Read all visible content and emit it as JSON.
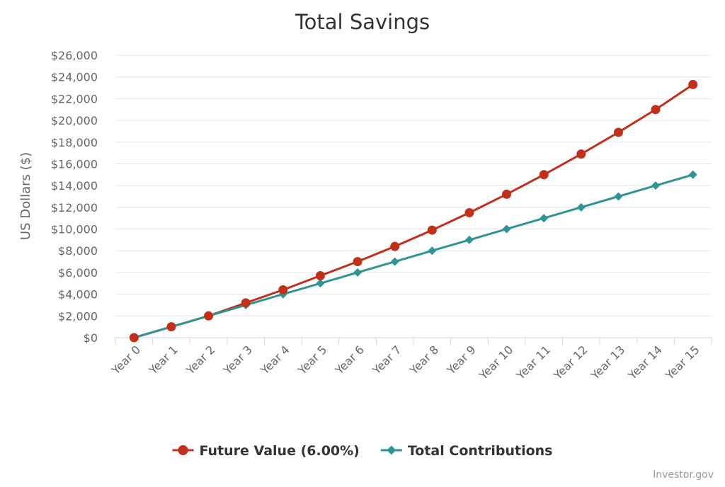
{
  "chart_data": {
    "type": "line",
    "title": "Total Savings",
    "xlabel": "",
    "ylabel": "US Dollars ($)",
    "categories": [
      "Year 0",
      "Year 1",
      "Year 2",
      "Year 3",
      "Year 4",
      "Year 5",
      "Year 6",
      "Year 7",
      "Year 8",
      "Year 9",
      "Year 10",
      "Year 11",
      "Year 12",
      "Year 13",
      "Year 14",
      "Year 15"
    ],
    "y_ticks": [
      0,
      2000,
      4000,
      6000,
      8000,
      10000,
      12000,
      14000,
      16000,
      18000,
      20000,
      22000,
      24000,
      26000
    ],
    "y_tick_labels": [
      "$0",
      "$2,000",
      "$4,000",
      "$6,000",
      "$8,000",
      "$10,000",
      "$12,000",
      "$14,000",
      "$16,000",
      "$18,000",
      "$20,000",
      "$22,000",
      "$24,000",
      "$26,000"
    ],
    "ylim": [
      0,
      26000
    ],
    "grid": true,
    "legend_position": "bottom-center",
    "series": [
      {
        "name": "Future Value (6.00%)",
        "color": "#c0301b",
        "marker": "circle",
        "values": [
          0,
          1000,
          2000,
          3200,
          4400,
          5700,
          7000,
          8400,
          9900,
          11500,
          13200,
          15000,
          16900,
          18900,
          21000,
          23300
        ]
      },
      {
        "name": "Total Contributions",
        "color": "#2e9496",
        "marker": "diamond",
        "values": [
          0,
          1000,
          2000,
          3000,
          4000,
          5000,
          6000,
          7000,
          8000,
          9000,
          10000,
          11000,
          12000,
          13000,
          14000,
          15000
        ]
      }
    ],
    "credit": "Investor.gov"
  }
}
